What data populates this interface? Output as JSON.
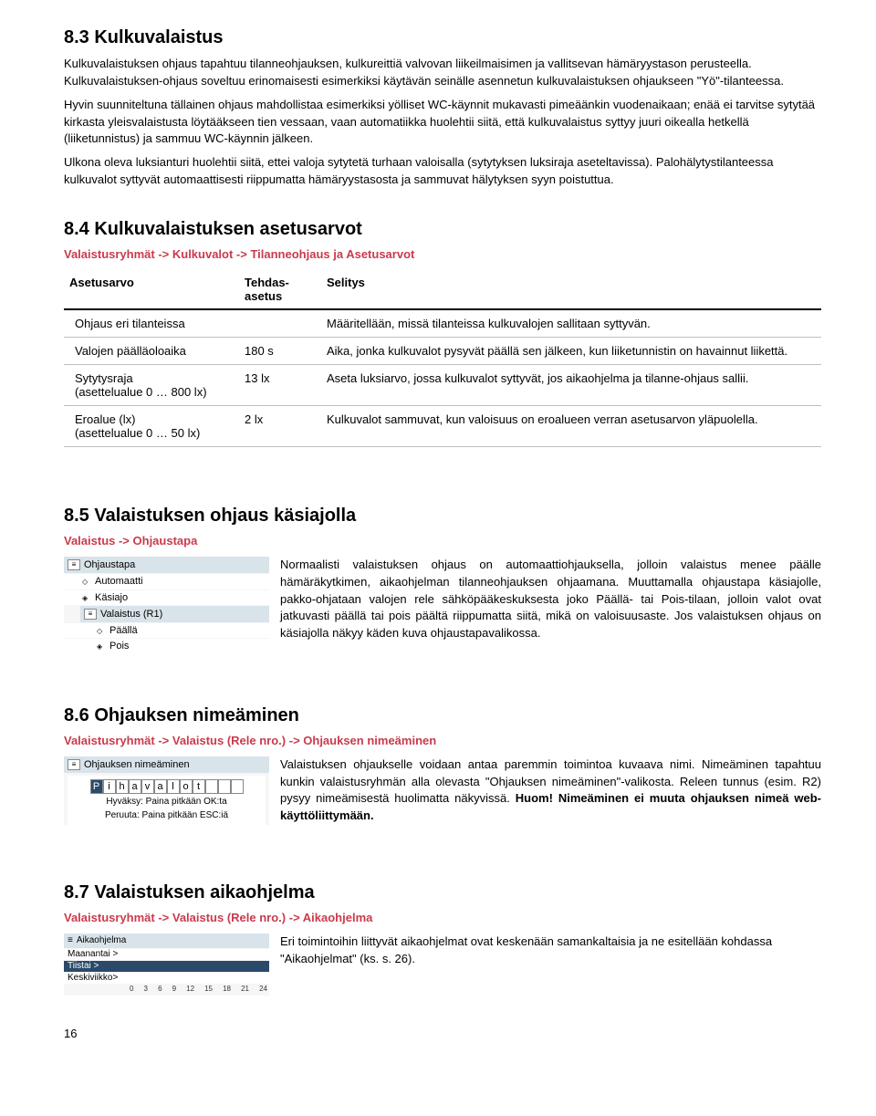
{
  "s83": {
    "title": "8.3 Kulkuvalaistus",
    "p1": "Kulkuvalaistuksen ohjaus tapahtuu tilanneohjauksen, kulkureittiä valvovan liikeilmaisimen ja vallitsevan hämäryystason perusteella. Kulkuvalaistuksen-ohjaus soveltuu erinomaisesti esimerkiksi käytävän seinälle asennetun kulkuvalaistuksen ohjaukseen \"Yö\"-tilanteessa.",
    "p2": "Hyvin suunniteltuna tällainen ohjaus mahdollistaa esimerkiksi yölliset WC-käynnit mukavasti pimeäänkin vuodenaikaan; enää ei tarvitse sytytää kirkasta yleisvalaistusta löytääkseen tien vessaan, vaan automatiikka huolehtii siitä, että kulkuvalaistus syttyy juuri oikealla hetkellä (liiketunnistus) ja sammuu WC-käynnin jälkeen.",
    "p3": "Ulkona oleva luksianturi huolehtii siitä, ettei valoja sytytetä turhaan valoisalla (sytytyksen luksiraja aseteltavissa). Palohälytystilanteessa kulkuvalot syttyvät automaattisesti riippumatta hämäryystasosta ja sammuvat hälytyksen syyn poistuttua."
  },
  "s84": {
    "title": "8.4 Kulkuvalaistuksen asetusarvot",
    "breadcrumb": "Valaistusryhmät -> Kulkuvalot  -> Tilanneohjaus ja Asetusarvot",
    "headers": {
      "c1": "Asetusarvo",
      "c2": "Tehdas-\nasetus",
      "c3": "Selitys"
    },
    "rows": [
      {
        "c1": "Ohjaus eri tilanteissa",
        "c2": "",
        "c3": "Määritellään, missä tilanteissa kulkuvalojen sallitaan syttyvän."
      },
      {
        "c1": "Valojen päälläoloaika",
        "c2": "180 s",
        "c3": "Aika, jonka kulkuvalot pysyvät päällä sen jälkeen, kun liiketunnistin on havainnut liikettä."
      },
      {
        "c1": "Sytytysraja\n(asettelualue 0 … 800 lx)",
        "c2": "13 lx",
        "c3": "Aseta luksiarvo, jossa kulkuvalot syttyvät, jos aikaohjelma ja tilanne-ohjaus sallii."
      },
      {
        "c1": "Eroalue (lx)\n(asettelualue 0 … 50 lx)",
        "c2": "2 lx",
        "c3": "Kulkuvalot sammuvat, kun valoisuus on eroalueen verran asetusarvon yläpuolella."
      }
    ]
  },
  "s85": {
    "title": "8.5 Valaistuksen ohjaus käsiajolla",
    "breadcrumb": "Valaistus  -> Ohjaustapa",
    "menu": {
      "header": "Ohjaustapa",
      "items": [
        "Automaatti",
        "Käsiajo"
      ],
      "subheader": "Valaistus (R1)",
      "subitems": [
        "Päällä",
        "Pois"
      ]
    },
    "body": "Normaalisti valaistuksen ohjaus on automaattiohjauksella, jolloin valaistus menee päälle hämäräkytkimen, aikaohjelman tilanneohjauksen ohjaamana. Muuttamalla ohjaustapa käsiajolle, pakko-ohjataan valojen rele sähköpääkeskuksesta joko Päällä- tai Pois-tilaan, jolloin valot ovat jatkuvasti päällä tai pois päältä riippumatta siitä, mikä on valoisuusaste. Jos valaistuksen ohjaus on käsiajolla näkyy käden kuva ohjaustapavalikossa."
  },
  "s86": {
    "title": "8.6 Ohjauksen nimeäminen",
    "breadcrumb": "Valaistusryhmät  -> Valaistus (Rele nro.) -> Ohjauksen nimeäminen",
    "menu": {
      "header": "Ohjauksen nimeäminen",
      "chars": [
        "P",
        "i",
        "h",
        "a",
        "v",
        "a",
        "l",
        "o",
        "t",
        " ",
        " ",
        " "
      ],
      "hint1": "Hyväksy: Paina pitkään OK:ta",
      "hint2": "Peruuta: Paina pitkään ESC:iä"
    },
    "body": "Valaistuksen ohjaukselle voidaan antaa paremmin toimintoa kuvaava nimi. Nimeäminen tapahtuu kunkin valaistusryhmän alla olevasta \"Ohjauksen nimeäminen\"-valikosta. Releen tunnus (esim. R2) pysyy nimeämisestä huolimatta näkyvissä. Huom! Nimeäminen ei muuta ohjauksen nimeä web-käyttöliittymään."
  },
  "s87": {
    "title": "8.7 Valaistuksen aikaohjelma",
    "breadcrumb": "Valaistusryhmät -> Valaistus (Rele nro.) -> Aikaohjelma",
    "menu": {
      "header": "Aikaohjelma",
      "days": [
        "Maanantai >",
        "Tiistai >",
        "Keskiviikko>"
      ],
      "axis": [
        "0",
        "3",
        "6",
        "9",
        "12",
        "15",
        "18",
        "21",
        "24"
      ]
    },
    "body": "Eri toimintoihin liittyvät aikaohjelmat ovat keskenään samankaltaisia ja ne esitellään kohdassa \"Aikaohjelmat\" (ks. s. 26)."
  },
  "pagenum": "16"
}
